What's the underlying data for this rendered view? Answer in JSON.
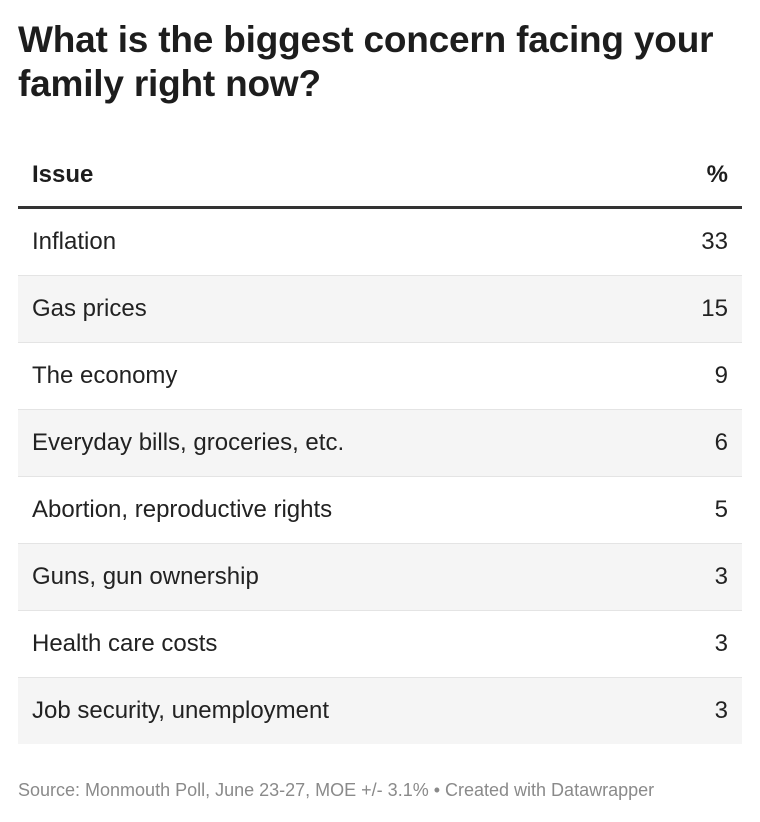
{
  "title": "What is the biggest concern facing your family right now?",
  "chart_data": {
    "type": "table",
    "columns": [
      "Issue",
      "%"
    ],
    "rows": [
      {
        "issue": "Inflation",
        "value": "33"
      },
      {
        "issue": "Gas prices",
        "value": "15"
      },
      {
        "issue": "The economy",
        "value": "9"
      },
      {
        "issue": "Everyday bills, groceries, etc.",
        "value": "6"
      },
      {
        "issue": "Abortion, reproductive rights",
        "value": "5"
      },
      {
        "issue": "Guns, gun ownership",
        "value": "3"
      },
      {
        "issue": "Health care costs",
        "value": "3"
      },
      {
        "issue": "Job security, unemployment",
        "value": "3"
      }
    ]
  },
  "footer": {
    "source": "Source: Monmouth Poll, June 23-27, MOE +/- 3.1% • Created with Datawrapper"
  }
}
